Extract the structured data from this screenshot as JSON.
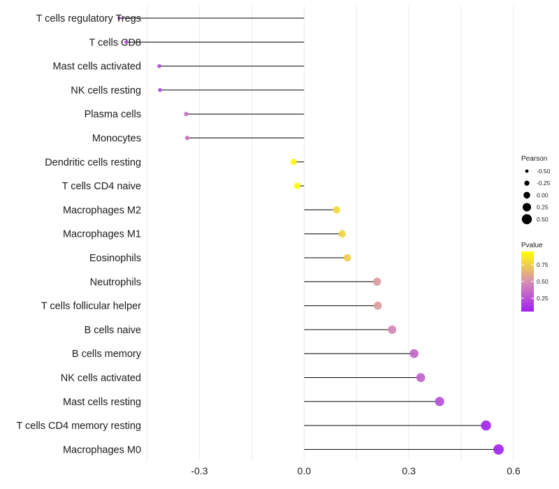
{
  "colors": {
    "background": "#ffffff",
    "grid": "#ebebeb",
    "segment": "#000000",
    "pvalue_low": "#a020f0",
    "pvalue_mid": "#d98fb0",
    "pvalue_high": "#ffff00"
  },
  "chart_data": {
    "type": "lollipop",
    "title": "",
    "xlabel": "",
    "ylabel": "",
    "xlim": [
      -0.455,
      0.6
    ],
    "xticks": [
      -0.3,
      0.0,
      0.3,
      0.6
    ],
    "xtick_labels": [
      "-0.3",
      "0.0",
      "0.3",
      "0.6"
    ],
    "categories": [
      "T cells regulatory  Tregs",
      "T cells CD8",
      "Mast cells activated",
      "NK cells resting",
      "Plasma cells",
      "Monocytes",
      "Dendritic cells resting",
      "T cells CD4 naive",
      "Macrophages M2",
      "Macrophages M1",
      "Eosinophils",
      "Neutrophils",
      "T cells follicular helper",
      "B cells naive",
      "B cells memory",
      "NK cells activated",
      "Mast cells resting",
      "T cells CD4 memory resting",
      "Macrophages M0"
    ],
    "pearson": [
      -0.53,
      -0.51,
      -0.415,
      -0.413,
      -0.338,
      -0.335,
      -0.03,
      -0.02,
      0.093,
      0.109,
      0.124,
      0.209,
      0.211,
      0.252,
      0.315,
      0.334,
      0.388,
      0.521,
      0.557
    ],
    "pvalue": [
      0.1,
      0.12,
      0.2,
      0.2,
      0.38,
      0.38,
      0.92,
      0.95,
      0.8,
      0.78,
      0.75,
      0.55,
      0.55,
      0.45,
      0.32,
      0.3,
      0.22,
      0.06,
      0.04
    ],
    "legend": {
      "size_title": "Pearson",
      "size_values": [
        -0.5,
        -0.25,
        0.0,
        0.25,
        0.5
      ],
      "size_labels": [
        "-0.50",
        "-0.25",
        "0.00",
        "0.25",
        "0.50"
      ],
      "color_title": "Pvalue",
      "color_values": [
        0.25,
        0.5,
        0.75
      ],
      "color_labels": [
        "0.25",
        "0.50",
        "0.75"
      ],
      "color_range": [
        0.05,
        0.95
      ],
      "placement": "right"
    }
  }
}
